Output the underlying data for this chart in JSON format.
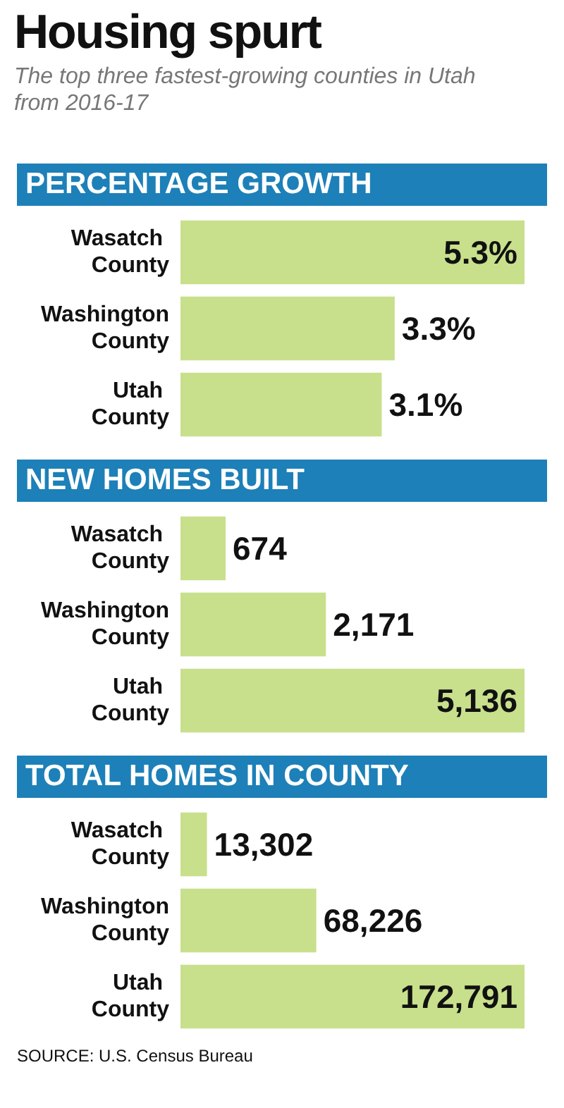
{
  "chart_data": [
    {
      "type": "other",
      "title": "Housing spurt",
      "subtitle": "The top three fastest-growing counties in Utah from 2016-17"
    },
    {
      "type": "bar",
      "orientation": "horizontal",
      "title": "PERCENTAGE GROWTH",
      "categories": [
        "Wasatch County",
        "Washington County",
        "Utah County"
      ],
      "values": [
        5.3,
        3.3,
        3.1
      ],
      "value_labels": [
        "5.3%",
        "3.3%",
        "3.1%"
      ],
      "color": "#c8e08c"
    },
    {
      "type": "bar",
      "orientation": "horizontal",
      "title": "NEW HOMES BUILT",
      "categories": [
        "Wasatch County",
        "Washington County",
        "Utah County"
      ],
      "values": [
        674,
        2171,
        5136
      ],
      "value_labels": [
        "674",
        "2,171",
        "5,136"
      ],
      "color": "#c8e08c"
    },
    {
      "type": "bar",
      "orientation": "horizontal",
      "title": "TOTAL HOMES IN COUNTY",
      "categories": [
        "Wasatch County",
        "Washington County",
        "Utah County"
      ],
      "values": [
        13302,
        68226,
        172791
      ],
      "value_labels": [
        "13,302",
        "68,226",
        "172,791"
      ],
      "color": "#c8e08c",
      "annotations": [
        "SOURCE: U.S. Census Bureau"
      ]
    }
  ]
}
